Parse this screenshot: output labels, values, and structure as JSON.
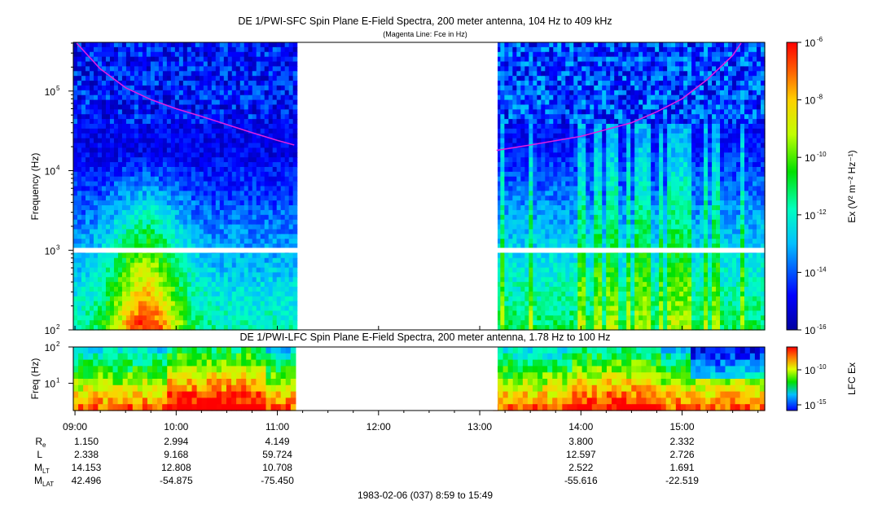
{
  "chart_data": [
    {
      "type": "heatmap",
      "title": "DE 1/PWI-SFC  Spin Plane E-Field Spectra, 200 meter antenna, 104 Hz to 409 kHz",
      "subtitle": "(Magenta Line: Fce in Hz)",
      "ylabel": "Frequency (Hz)",
      "yscale": "log",
      "ylim": [
        100,
        409000
      ],
      "yticks": [
        {
          "label": "10",
          "exp": "2"
        },
        {
          "label": "10",
          "exp": "3"
        },
        {
          "label": "10",
          "exp": "4"
        },
        {
          "label": "10",
          "exp": "5"
        }
      ],
      "time_range": [
        "08:59",
        "15:49"
      ],
      "data_gap": [
        "11:12",
        "13:08"
      ],
      "colorbar": {
        "label": "Ex (V² m⁻² Hz⁻¹)",
        "scale": "log",
        "range": [
          1e-16,
          1e-06
        ],
        "ticks": [
          {
            "label": "10",
            "exp": "-6"
          },
          {
            "label": "10",
            "exp": "-8"
          },
          {
            "label": "10",
            "exp": "-10"
          },
          {
            "label": "10",
            "exp": "-12"
          },
          {
            "label": "10",
            "exp": "-14"
          },
          {
            "label": "10",
            "exp": "-16"
          }
        ]
      },
      "overlay_line": {
        "color": "#e020e0",
        "points": [
          {
            "t": "09:01",
            "f": 400000
          },
          {
            "t": "09:15",
            "f": 190000
          },
          {
            "t": "09:30",
            "f": 110000
          },
          {
            "t": "09:45",
            "f": 78000
          },
          {
            "t": "10:00",
            "f": 60000
          },
          {
            "t": "10:15",
            "f": 48000
          },
          {
            "t": "10:30",
            "f": 38000
          },
          {
            "t": "10:45",
            "f": 30000
          },
          {
            "t": "11:00",
            "f": 24000
          },
          {
            "t": "11:10",
            "f": 21000
          },
          {
            "t": "13:10",
            "f": 18000
          },
          {
            "t": "13:30",
            "f": 21000
          },
          {
            "t": "14:00",
            "f": 27000
          },
          {
            "t": "14:30",
            "f": 40000
          },
          {
            "t": "14:45",
            "f": 55000
          },
          {
            "t": "15:00",
            "f": 80000
          },
          {
            "t": "15:15",
            "f": 140000
          },
          {
            "t": "15:30",
            "f": 280000
          },
          {
            "t": "15:35",
            "f": 400000
          }
        ]
      }
    },
    {
      "type": "heatmap",
      "title": "DE 1/PWI-LFC  Spin Plane E-Field Spectra, 200 meter antenna, 1.78 Hz to 100 Hz",
      "ylabel": "Freq (Hz)",
      "yscale": "log",
      "ylim": [
        1.78,
        100
      ],
      "yticks": [
        {
          "label": "10",
          "exp": "2"
        },
        {
          "label": "10",
          "exp": "1"
        }
      ],
      "colorbar": {
        "label": "LFC Ex",
        "scale": "log",
        "ticks": [
          {
            "label": "10",
            "exp": "-10"
          },
          {
            "label": "10",
            "exp": "-15"
          }
        ]
      }
    }
  ],
  "time_axis": {
    "labels": [
      "09:00",
      "10:00",
      "11:00",
      "12:00",
      "13:00",
      "14:00",
      "15:00"
    ]
  },
  "ephemeris": {
    "rows": [
      {
        "name": "R",
        "sub": "e",
        "first": "1.150",
        "values": [
          "2.994",
          "4.149",
          "",
          "",
          "3.800",
          "2.332"
        ]
      },
      {
        "name": "L",
        "sub": "",
        "first": "2.338",
        "values": [
          "9.168",
          "59.724",
          "",
          "",
          "12.597",
          "2.726"
        ]
      },
      {
        "name": "M",
        "sub": "LT",
        "first": "14.153",
        "values": [
          "12.808",
          "10.708",
          "",
          "",
          "2.522",
          "1.691"
        ]
      },
      {
        "name": "M",
        "sub": "LAT",
        "first": "42.496",
        "values": [
          "-54.875",
          "-75.450",
          "",
          "",
          "-55.616",
          "-22.519"
        ]
      }
    ]
  },
  "footer": "1983-02-06 (037) 8:59 to 15:49"
}
